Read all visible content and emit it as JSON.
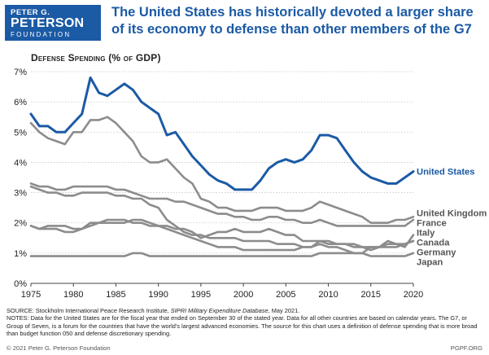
{
  "logo": {
    "line1": "PETER G.",
    "line2": "PETERSON",
    "line3": "FOUNDATION"
  },
  "title": "The United States has historically devoted a larger share of its economy to defense than other members of the G7",
  "subtitle": "Defense Spending (% of GDP)",
  "colors": {
    "highlight": "#1b5aa5",
    "other": "#8c8c8c",
    "grid": "#c8c8c8",
    "text": "#222222"
  },
  "chart_data": {
    "type": "line",
    "title": "Defense Spending (% of GDP)",
    "xlabel": "",
    "ylabel": "",
    "xlim": [
      1975,
      2020
    ],
    "ylim": [
      0,
      7
    ],
    "x_ticks": [
      "1975",
      "1980",
      "1985",
      "1990",
      "1995",
      "2000",
      "2005",
      "2010",
      "2015",
      "2020"
    ],
    "y_ticks": [
      "0%",
      "1%",
      "2%",
      "3%",
      "4%",
      "5%",
      "6%",
      "7%"
    ],
    "grid": true,
    "legend": "direct labels at line ends",
    "x": [
      1975,
      1976,
      1977,
      1978,
      1979,
      1980,
      1981,
      1982,
      1983,
      1984,
      1985,
      1986,
      1987,
      1988,
      1989,
      1990,
      1991,
      1992,
      1993,
      1994,
      1995,
      1996,
      1997,
      1998,
      1999,
      2000,
      2001,
      2002,
      2003,
      2004,
      2005,
      2006,
      2007,
      2008,
      2009,
      2010,
      2011,
      2012,
      2013,
      2014,
      2015,
      2016,
      2017,
      2018,
      2019,
      2020
    ],
    "series": [
      {
        "name": "United States",
        "highlight": true,
        "values": [
          5.6,
          5.2,
          5.2,
          5.0,
          5.0,
          5.3,
          5.6,
          6.8,
          6.3,
          6.2,
          6.4,
          6.6,
          6.4,
          6.0,
          5.8,
          5.6,
          4.9,
          5.0,
          4.6,
          4.2,
          3.9,
          3.6,
          3.4,
          3.3,
          3.1,
          3.1,
          3.1,
          3.4,
          3.8,
          4.0,
          4.1,
          4.0,
          4.1,
          4.4,
          4.9,
          4.9,
          4.8,
          4.4,
          4.0,
          3.7,
          3.5,
          3.4,
          3.3,
          3.3,
          3.5,
          3.7
        ]
      },
      {
        "name": "United Kingdom",
        "values": [
          5.3,
          5.0,
          4.8,
          4.7,
          4.6,
          5.0,
          5.0,
          5.4,
          5.4,
          5.5,
          5.3,
          5.0,
          4.7,
          4.2,
          4.0,
          4.0,
          4.1,
          3.8,
          3.5,
          3.3,
          2.8,
          2.7,
          2.5,
          2.5,
          2.4,
          2.4,
          2.4,
          2.5,
          2.5,
          2.5,
          2.4,
          2.4,
          2.4,
          2.5,
          2.7,
          2.6,
          2.5,
          2.4,
          2.3,
          2.2,
          2.0,
          2.0,
          2.0,
          2.1,
          2.1,
          2.2
        ]
      },
      {
        "name": "France",
        "values": [
          3.3,
          3.2,
          3.2,
          3.1,
          3.1,
          3.2,
          3.2,
          3.2,
          3.2,
          3.2,
          3.1,
          3.1,
          3.0,
          2.9,
          2.8,
          2.8,
          2.8,
          2.7,
          2.7,
          2.6,
          2.5,
          2.4,
          2.3,
          2.3,
          2.2,
          2.2,
          2.1,
          2.1,
          2.2,
          2.2,
          2.1,
          2.1,
          2.0,
          2.0,
          2.1,
          2.0,
          1.9,
          1.9,
          1.9,
          1.9,
          1.9,
          1.9,
          1.9,
          1.9,
          1.9,
          2.1
        ]
      },
      {
        "name": "Italy",
        "values": [
          1.9,
          1.8,
          1.9,
          1.9,
          1.9,
          1.8,
          1.8,
          1.9,
          2.0,
          2.0,
          2.0,
          2.0,
          2.1,
          2.1,
          2.0,
          1.9,
          1.9,
          1.8,
          1.8,
          1.7,
          1.5,
          1.6,
          1.7,
          1.7,
          1.8,
          1.7,
          1.7,
          1.7,
          1.8,
          1.7,
          1.6,
          1.6,
          1.4,
          1.4,
          1.4,
          1.4,
          1.3,
          1.3,
          1.3,
          1.2,
          1.1,
          1.2,
          1.3,
          1.3,
          1.2,
          1.6
        ]
      },
      {
        "name": "Canada",
        "values": [
          1.9,
          1.8,
          1.8,
          1.8,
          1.7,
          1.7,
          1.8,
          2.0,
          2.0,
          2.1,
          2.1,
          2.1,
          2.0,
          2.0,
          1.9,
          1.9,
          1.8,
          1.7,
          1.6,
          1.5,
          1.4,
          1.3,
          1.2,
          1.2,
          1.2,
          1.1,
          1.1,
          1.1,
          1.1,
          1.1,
          1.1,
          1.1,
          1.2,
          1.2,
          1.3,
          1.2,
          1.2,
          1.1,
          1.0,
          1.0,
          1.2,
          1.2,
          1.4,
          1.3,
          1.3,
          1.4
        ]
      },
      {
        "name": "Germany",
        "values": [
          3.2,
          3.1,
          3.0,
          3.0,
          2.9,
          2.9,
          3.0,
          3.0,
          3.0,
          3.0,
          2.9,
          2.9,
          2.8,
          2.8,
          2.6,
          2.5,
          2.1,
          1.9,
          1.7,
          1.6,
          1.6,
          1.5,
          1.5,
          1.5,
          1.5,
          1.4,
          1.4,
          1.4,
          1.4,
          1.3,
          1.3,
          1.3,
          1.2,
          1.2,
          1.4,
          1.3,
          1.3,
          1.3,
          1.2,
          1.2,
          1.2,
          1.2,
          1.2,
          1.2,
          1.3,
          1.4
        ]
      },
      {
        "name": "Japan",
        "values": [
          0.9,
          0.9,
          0.9,
          0.9,
          0.9,
          0.9,
          0.9,
          0.9,
          0.9,
          0.9,
          0.9,
          0.9,
          1.0,
          1.0,
          0.9,
          0.9,
          0.9,
          0.9,
          0.9,
          0.9,
          0.9,
          0.9,
          0.9,
          0.9,
          0.9,
          0.9,
          0.9,
          0.9,
          0.9,
          0.9,
          0.9,
          0.9,
          0.9,
          0.9,
          1.0,
          1.0,
          1.0,
          1.0,
          1.0,
          1.0,
          0.9,
          0.9,
          0.9,
          0.9,
          0.9,
          1.0
        ]
      }
    ],
    "labels": [
      "United States",
      "United Kingdom",
      "France",
      "Italy",
      "Canada",
      "Germany",
      "Japan"
    ]
  },
  "notes": {
    "source_prefix": "SOURCE: Stockholm International Peace Research Institute, ",
    "source_title": "SIPRI Military Expenditure Database",
    "source_suffix": ", May 2021.",
    "notes_text": "NOTES: Data for the United States are for the fiscal year that ended on September 30 of the stated year. Data for all other countries are based on calendar years. The G7, or Group of Seven, is a forum for the countries that have the world's largest advanced economies. The source for this chart uses a definition of defense spending that is more broad than budget function 050 and defense discretionary spending."
  },
  "footer": {
    "copyright": "© 2021 Peter G. Peterson Foundation",
    "site": "PGPF.ORG"
  }
}
